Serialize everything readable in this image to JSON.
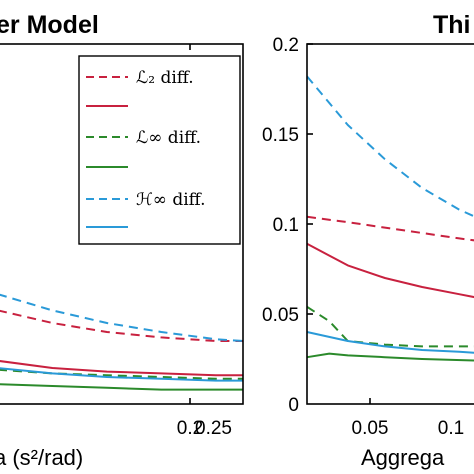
{
  "chart_data": [
    {
      "type": "line",
      "title": "er Model",
      "xlabel": "a (s²/rad)",
      "xlim": [
        0.05,
        0.275
      ],
      "ylim": [
        0,
        0.2
      ],
      "x_ticks": [
        "0.2",
        "0.25"
      ],
      "legend": {
        "placement": "top-right",
        "entries": [
          "ℒ₂ diff.",
          "",
          "ℒ∞ diff.",
          "",
          "ℋ∞ diff.",
          ""
        ]
      },
      "series": [
        {
          "name": "ℒ₂ diff.",
          "color": "#c8213f",
          "dash": true,
          "x": [
            0.05,
            0.1,
            0.15,
            0.2,
            0.25,
            0.275
          ],
          "y": [
            0.052,
            0.045,
            0.04,
            0.037,
            0.035,
            0.035
          ]
        },
        {
          "color": "#c8213f",
          "dash": false,
          "x": [
            0.05,
            0.1,
            0.15,
            0.2,
            0.25,
            0.275
          ],
          "y": [
            0.024,
            0.02,
            0.018,
            0.017,
            0.016,
            0.016
          ]
        },
        {
          "name": "ℒ∞ diff.",
          "color": "#2b8a2b",
          "dash": true,
          "x": [
            0.05,
            0.1,
            0.15,
            0.2,
            0.25,
            0.275
          ],
          "y": [
            0.019,
            0.017,
            0.016,
            0.015,
            0.014,
            0.014
          ]
        },
        {
          "color": "#2b8a2b",
          "dash": false,
          "x": [
            0.05,
            0.1,
            0.15,
            0.2,
            0.25,
            0.275
          ],
          "y": [
            0.011,
            0.01,
            0.009,
            0.008,
            0.008,
            0.008
          ]
        },
        {
          "name": "ℋ∞ diff.",
          "color": "#2a9ad8",
          "dash": true,
          "x": [
            0.05,
            0.1,
            0.15,
            0.2,
            0.25,
            0.275
          ],
          "y": [
            0.061,
            0.052,
            0.045,
            0.04,
            0.036,
            0.035
          ]
        },
        {
          "color": "#2a9ad8",
          "dash": false,
          "x": [
            0.05,
            0.1,
            0.15,
            0.2,
            0.25,
            0.275
          ],
          "y": [
            0.02,
            0.017,
            0.015,
            0.014,
            0.013,
            0.013
          ]
        }
      ]
    },
    {
      "type": "line",
      "title": "Thi",
      "xlabel": "Aggrega",
      "xlim": [
        0.028,
        0.125
      ],
      "ylim": [
        0,
        0.2
      ],
      "x_ticks": [
        "0.05",
        "0.1"
      ],
      "y_ticks": [
        "0",
        "0.05",
        "0.1",
        "0.15",
        "0.2"
      ],
      "series": [
        {
          "color": "#2a9ad8",
          "dash": true,
          "x": [
            0.028,
            0.05,
            0.07,
            0.09,
            0.11,
            0.125
          ],
          "y": [
            0.182,
            0.155,
            0.136,
            0.12,
            0.108,
            0.101
          ]
        },
        {
          "color": "#c8213f",
          "dash": true,
          "x": [
            0.028,
            0.05,
            0.07,
            0.09,
            0.11,
            0.125
          ],
          "y": [
            0.104,
            0.101,
            0.098,
            0.095,
            0.092,
            0.09
          ]
        },
        {
          "color": "#c8213f",
          "dash": false,
          "x": [
            0.028,
            0.05,
            0.07,
            0.09,
            0.11,
            0.125
          ],
          "y": [
            0.089,
            0.077,
            0.07,
            0.065,
            0.061,
            0.058
          ]
        },
        {
          "color": "#2b8a2b",
          "dash": true,
          "x": [
            0.028,
            0.04,
            0.05,
            0.07,
            0.09,
            0.125
          ],
          "y": [
            0.054,
            0.046,
            0.035,
            0.033,
            0.032,
            0.032
          ]
        },
        {
          "color": "#2a9ad8",
          "dash": false,
          "x": [
            0.028,
            0.05,
            0.07,
            0.09,
            0.11,
            0.125
          ],
          "y": [
            0.04,
            0.035,
            0.032,
            0.03,
            0.029,
            0.028
          ]
        },
        {
          "color": "#2b8a2b",
          "dash": false,
          "x": [
            0.028,
            0.04,
            0.05,
            0.07,
            0.09,
            0.125
          ],
          "y": [
            0.026,
            0.028,
            0.027,
            0.026,
            0.025,
            0.024
          ]
        }
      ]
    }
  ]
}
